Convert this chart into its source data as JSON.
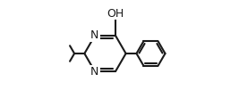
{
  "bg_color": "#ffffff",
  "line_color": "#1a1a1a",
  "line_width": 1.5,
  "oh_label": "OH",
  "n_label": "N",
  "font_size": 9,
  "fig_width": 2.67,
  "fig_height": 1.2,
  "dpi": 100
}
